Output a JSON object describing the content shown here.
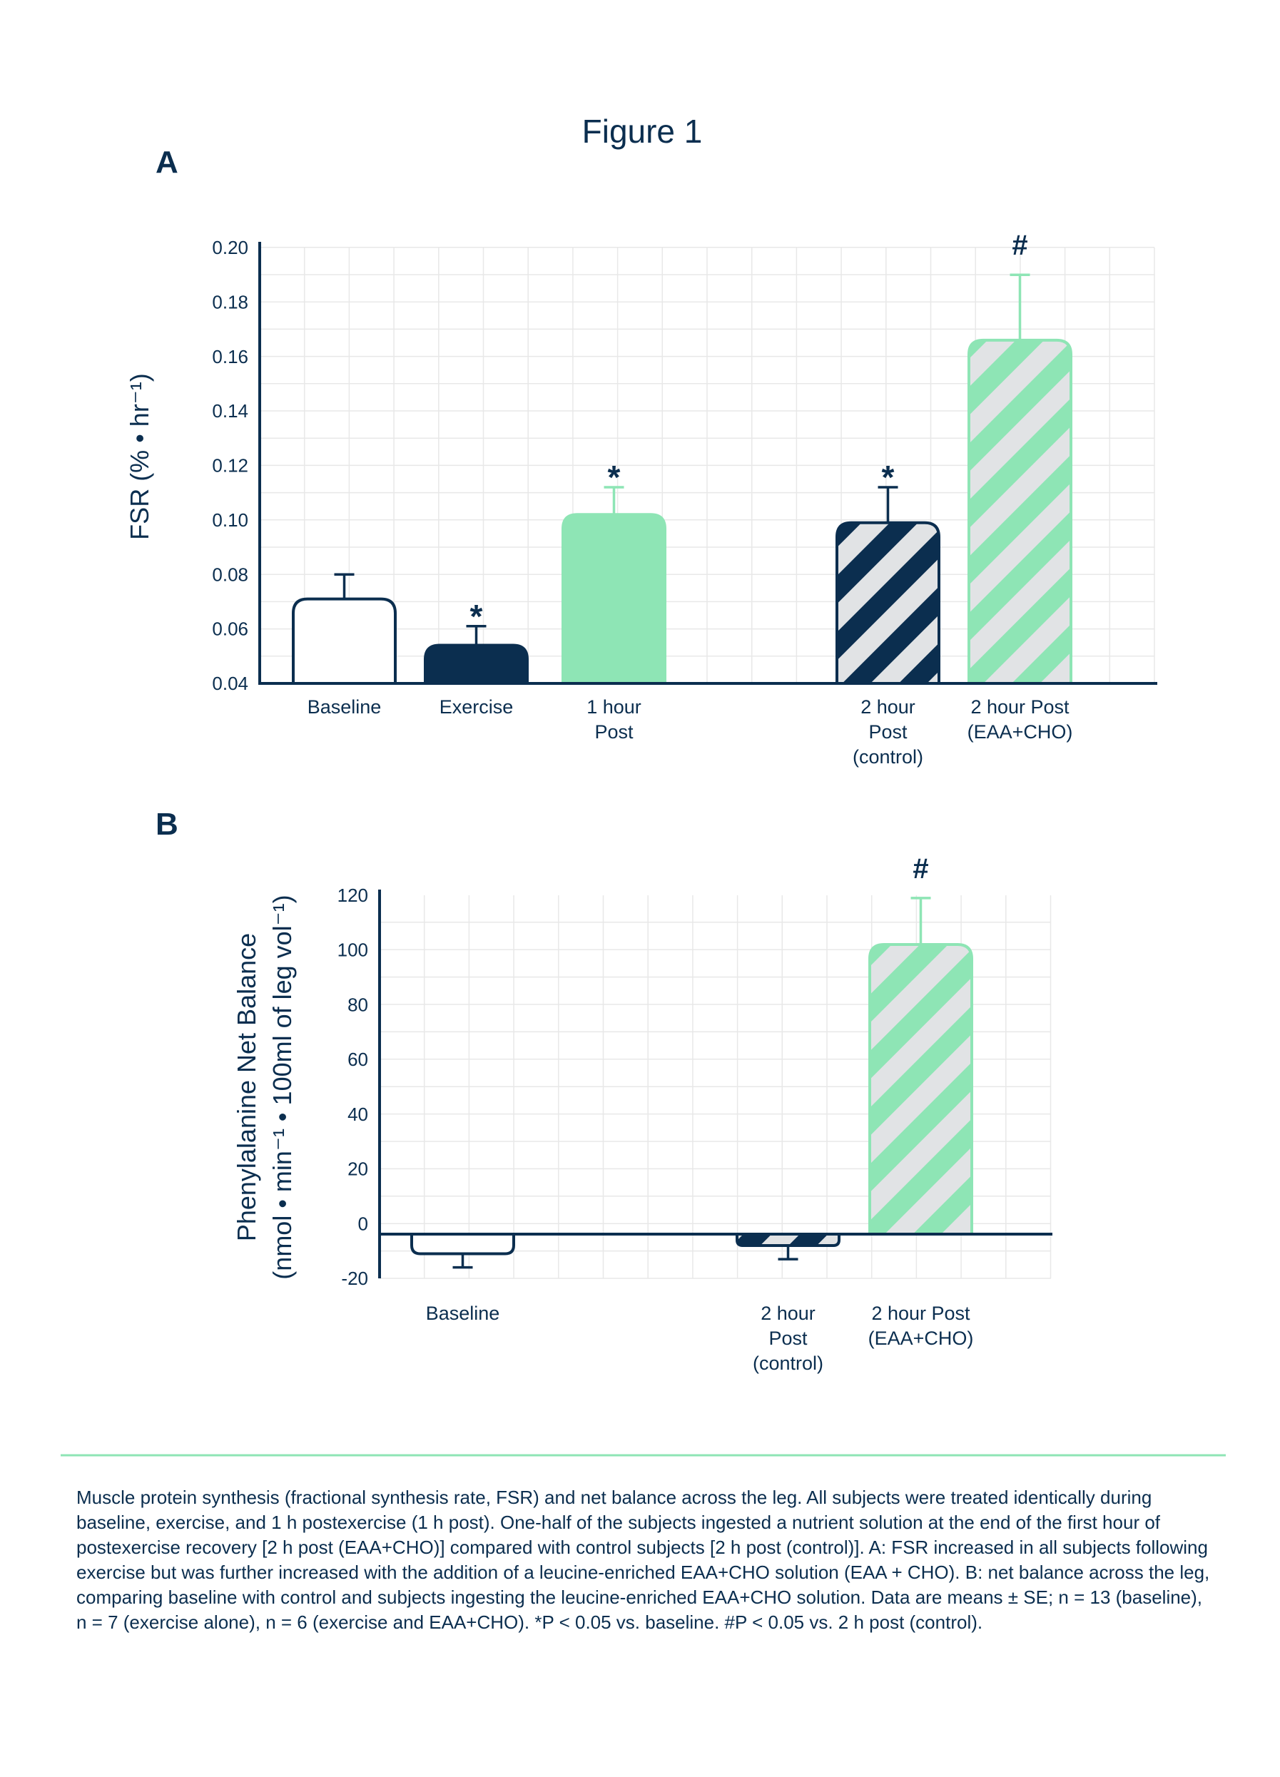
{
  "figure_title": "Figure 1",
  "caption": "Muscle protein synthesis (fractional synthesis rate, FSR) and net balance across the leg. All subjects were treated identically during baseline, exercise, and 1 h postexercise (1 h post). One-half of the subjects ingested a nutrient solution at the end of the first hour of postexercise recovery [2 h post (EAA+CHO)] compared with control subjects [2 h post (control)]. A: FSR increased in all subjects following exercise but was further increased with the addition of a leucine-enriched EAA+CHO solution (EAA + CHO). B: net balance across the leg, comparing baseline with control and subjects ingesting the leucine-enriched EAA+CHO solution. Data are means ± SE; n = 13 (baseline), n = 7 (exercise alone), n = 6 (exercise and EAA+CHO). *P < 0.05 vs. baseline. #P < 0.05 vs. 2 h post (control).",
  "colors": {
    "navy": "#0b2e4f",
    "green": "#8ee5b5",
    "stripe_bg": "#e1e3e5",
    "grid": "#e8e8e8",
    "divider": "#8ee5b5"
  },
  "chart_data": [
    {
      "panel": "A",
      "type": "bar",
      "ylabel": "FSR (% • hr⁻¹)",
      "ylim": [
        0.04,
        0.2
      ],
      "yticks": [
        "0.20",
        "0.18",
        "0.16",
        "0.14",
        "0.12",
        "0.10",
        "0.08",
        "0.06",
        "0.04"
      ],
      "grid": true,
      "bars": [
        {
          "label": [
            "Baseline"
          ],
          "value": 0.071,
          "error": 0.009,
          "style": "outline",
          "mark": ""
        },
        {
          "label": [
            "Exercise"
          ],
          "value": 0.054,
          "error": 0.007,
          "style": "navy",
          "mark": "*"
        },
        {
          "label": [
            "1 hour",
            "Post"
          ],
          "value": 0.102,
          "error": 0.01,
          "style": "green",
          "mark": "*"
        },
        {
          "label": [
            "2 hour",
            "Post",
            "(control)"
          ],
          "value": 0.099,
          "error": 0.013,
          "style": "navy-stripe",
          "mark": "*"
        },
        {
          "label": [
            "2 hour Post",
            "(EAA+CHO)"
          ],
          "value": 0.166,
          "error": 0.024,
          "style": "green-stripe",
          "mark": "#"
        }
      ]
    },
    {
      "panel": "B",
      "type": "bar",
      "ylabel": [
        "Phenylalanine Net Balance",
        "(nmol • min⁻¹ • 100ml of leg vol⁻¹)"
      ],
      "ylim": [
        -20,
        120
      ],
      "yticks": [
        "120",
        "100",
        "80",
        "60",
        "40",
        "20",
        "0",
        "-20"
      ],
      "grid": true,
      "bars": [
        {
          "label": [
            "Baseline"
          ],
          "value": -11,
          "error": 5,
          "style": "outline",
          "mark": ""
        },
        {
          "label": [
            "2 hour",
            "Post",
            "(control)"
          ],
          "value": -8,
          "error": 5,
          "style": "navy-stripe",
          "mark": ""
        },
        {
          "label": [
            "2 hour Post",
            "(EAA+CHO)"
          ],
          "value": 102,
          "error": 17,
          "style": "green-stripe",
          "mark": "#"
        }
      ]
    }
  ]
}
